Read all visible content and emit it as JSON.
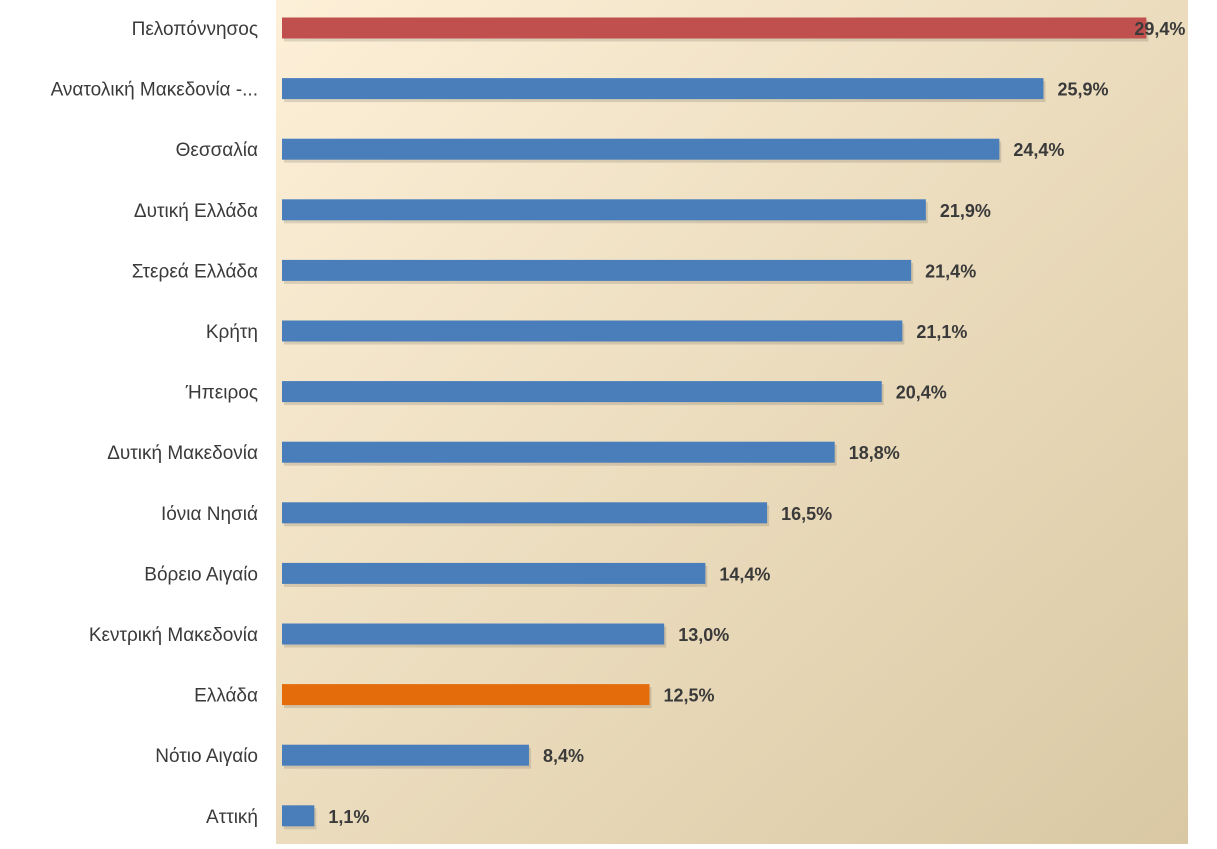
{
  "chart_data": {
    "type": "bar",
    "orientation": "horizontal",
    "title": "",
    "xlabel": "",
    "ylabel": "",
    "xlim": [
      0,
      30
    ],
    "grid": false,
    "legend": "none",
    "categories": [
      "Πελοπόννησος",
      "Ανατολική Μακεδονία -...",
      "Θεσσαλία",
      "Δυτική Ελλάδα",
      "Στερεά Ελλάδα",
      "Κρήτη",
      "Ήπειρος",
      "Δυτική Μακεδονία",
      "Ιόνια Νησιά",
      "Βόρειο Αιγαίο",
      "Κεντρική Μακεδονία",
      "Ελλάδα",
      "Νότιο Αιγαίο",
      "Αττική"
    ],
    "values": [
      29.4,
      25.9,
      24.4,
      21.9,
      21.4,
      21.1,
      20.4,
      18.8,
      16.5,
      14.4,
      13.0,
      12.5,
      8.4,
      1.1
    ],
    "value_labels": [
      "29,4%",
      "25,9%",
      "24,4%",
      "21,9%",
      "21,4%",
      "21,1%",
      "20,4%",
      "18,8%",
      "16,5%",
      "14,4%",
      "13,0%",
      "12,5%",
      "8,4%",
      "1,1%"
    ],
    "bar_colors": [
      "#c0504d",
      "#4a7ebb",
      "#4a7ebb",
      "#4a7ebb",
      "#4a7ebb",
      "#4a7ebb",
      "#4a7ebb",
      "#4a7ebb",
      "#4a7ebb",
      "#4a7ebb",
      "#4a7ebb",
      "#e46c0a",
      "#4a7ebb",
      "#4a7ebb"
    ],
    "background_gradient": [
      "#fdf0d8",
      "#d9c8a3"
    ]
  }
}
